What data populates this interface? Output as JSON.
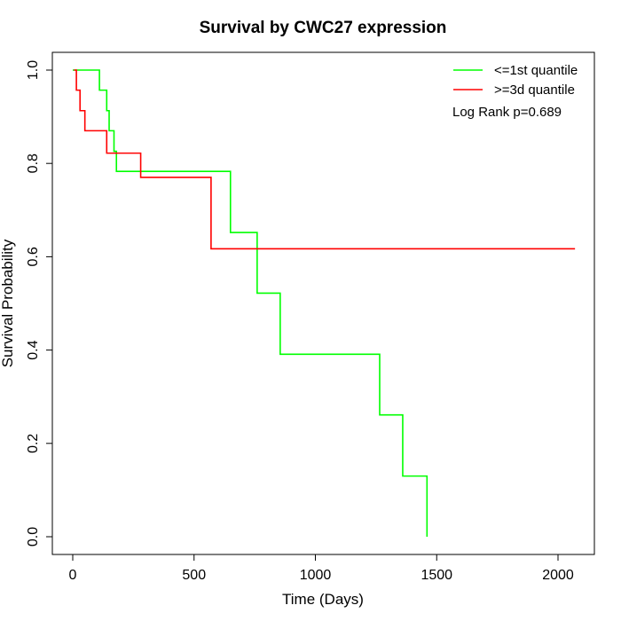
{
  "chart_data": {
    "type": "line",
    "subtype": "kaplan-meier step",
    "title": "Survival by CWC27 expression",
    "xlabel": "Time (Days)",
    "ylabel": "Survival Probability",
    "xlim": [
      0,
      2070
    ],
    "ylim": [
      0,
      1
    ],
    "x_ticks": [
      "0",
      "500",
      "1000",
      "1500",
      "2000"
    ],
    "y_ticks": [
      "0.0",
      "0.2",
      "0.4",
      "0.6",
      "0.8",
      "1.0"
    ],
    "grid": false,
    "legend_position": "top-right",
    "annotation": "Log Rank p=0.689",
    "series": [
      {
        "name": "<=1st quantile",
        "color": "#00ff00",
        "x": [
          0,
          110,
          140,
          150,
          170,
          180,
          650,
          760,
          855,
          1265,
          1360,
          1460
        ],
        "y": [
          1.0,
          0.957,
          0.913,
          0.87,
          0.826,
          0.783,
          0.652,
          0.522,
          0.391,
          0.261,
          0.13,
          0.0
        ]
      },
      {
        "name": ">=3d quantile",
        "color": "#ff0000",
        "x": [
          5,
          15,
          30,
          50,
          140,
          280,
          570,
          2070
        ],
        "y": [
          1.0,
          0.957,
          0.913,
          0.87,
          0.822,
          0.77,
          0.617,
          0.617
        ]
      }
    ]
  }
}
